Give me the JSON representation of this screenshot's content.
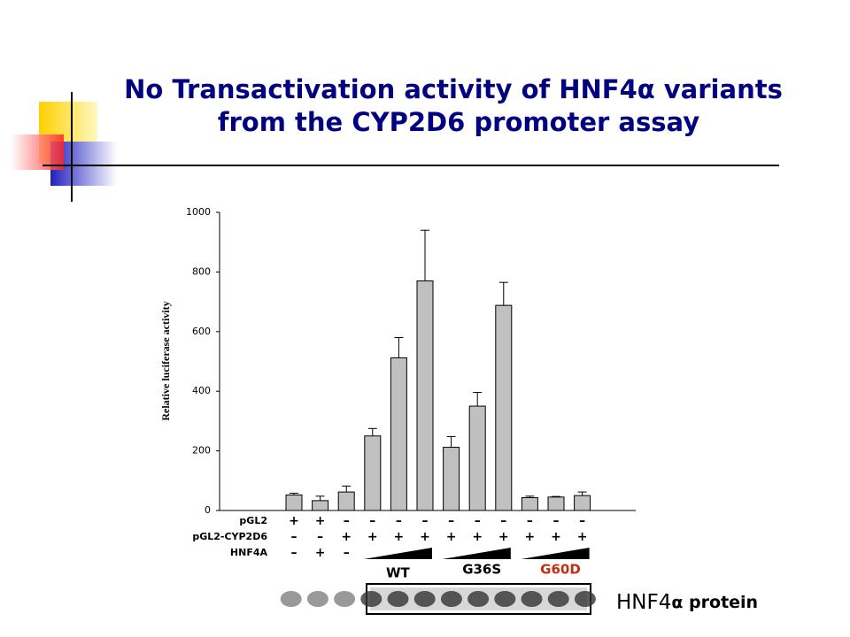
{
  "title": [
    "No Transactivation activity of HNF4α variants",
    "from the CYP2D6 promoter assay"
  ],
  "chart_data": {
    "type": "bar",
    "y_label": "Relative luciferase activity",
    "categories": [
      null,
      null,
      null,
      null,
      null,
      null,
      null,
      null,
      null,
      null,
      null,
      null
    ],
    "values": [
      52,
      33,
      62,
      250,
      512,
      770,
      212,
      350,
      688,
      43,
      45,
      50
    ],
    "errors": [
      6,
      15,
      20,
      25,
      68,
      170,
      36,
      46,
      77,
      5,
      2,
      12
    ],
    "color": "#c0c0c0",
    "ylim": [
      0,
      1000
    ],
    "yticks": [
      0,
      200,
      400,
      600,
      800,
      1000
    ]
  },
  "conditions": [
    {
      "label": "pGL2",
      "signs": [
        "+",
        "+",
        "–",
        "–",
        "–",
        "–",
        "–",
        "–",
        "–",
        "–",
        "–",
        "–"
      ]
    },
    {
      "label": "pGL2-CYP2D6",
      "signs": [
        "–",
        "–",
        "+",
        "+",
        "+",
        "+",
        "+",
        "+",
        "+",
        "+",
        "+",
        "+"
      ]
    },
    {
      "label": "HNF4A",
      "signs": [
        "–",
        "+",
        "–"
      ]
    }
  ],
  "groups": [
    "WT",
    "G36S",
    "G60D"
  ],
  "blot_label": {
    "gene": "HNF4",
    "suffix": "α protein"
  }
}
